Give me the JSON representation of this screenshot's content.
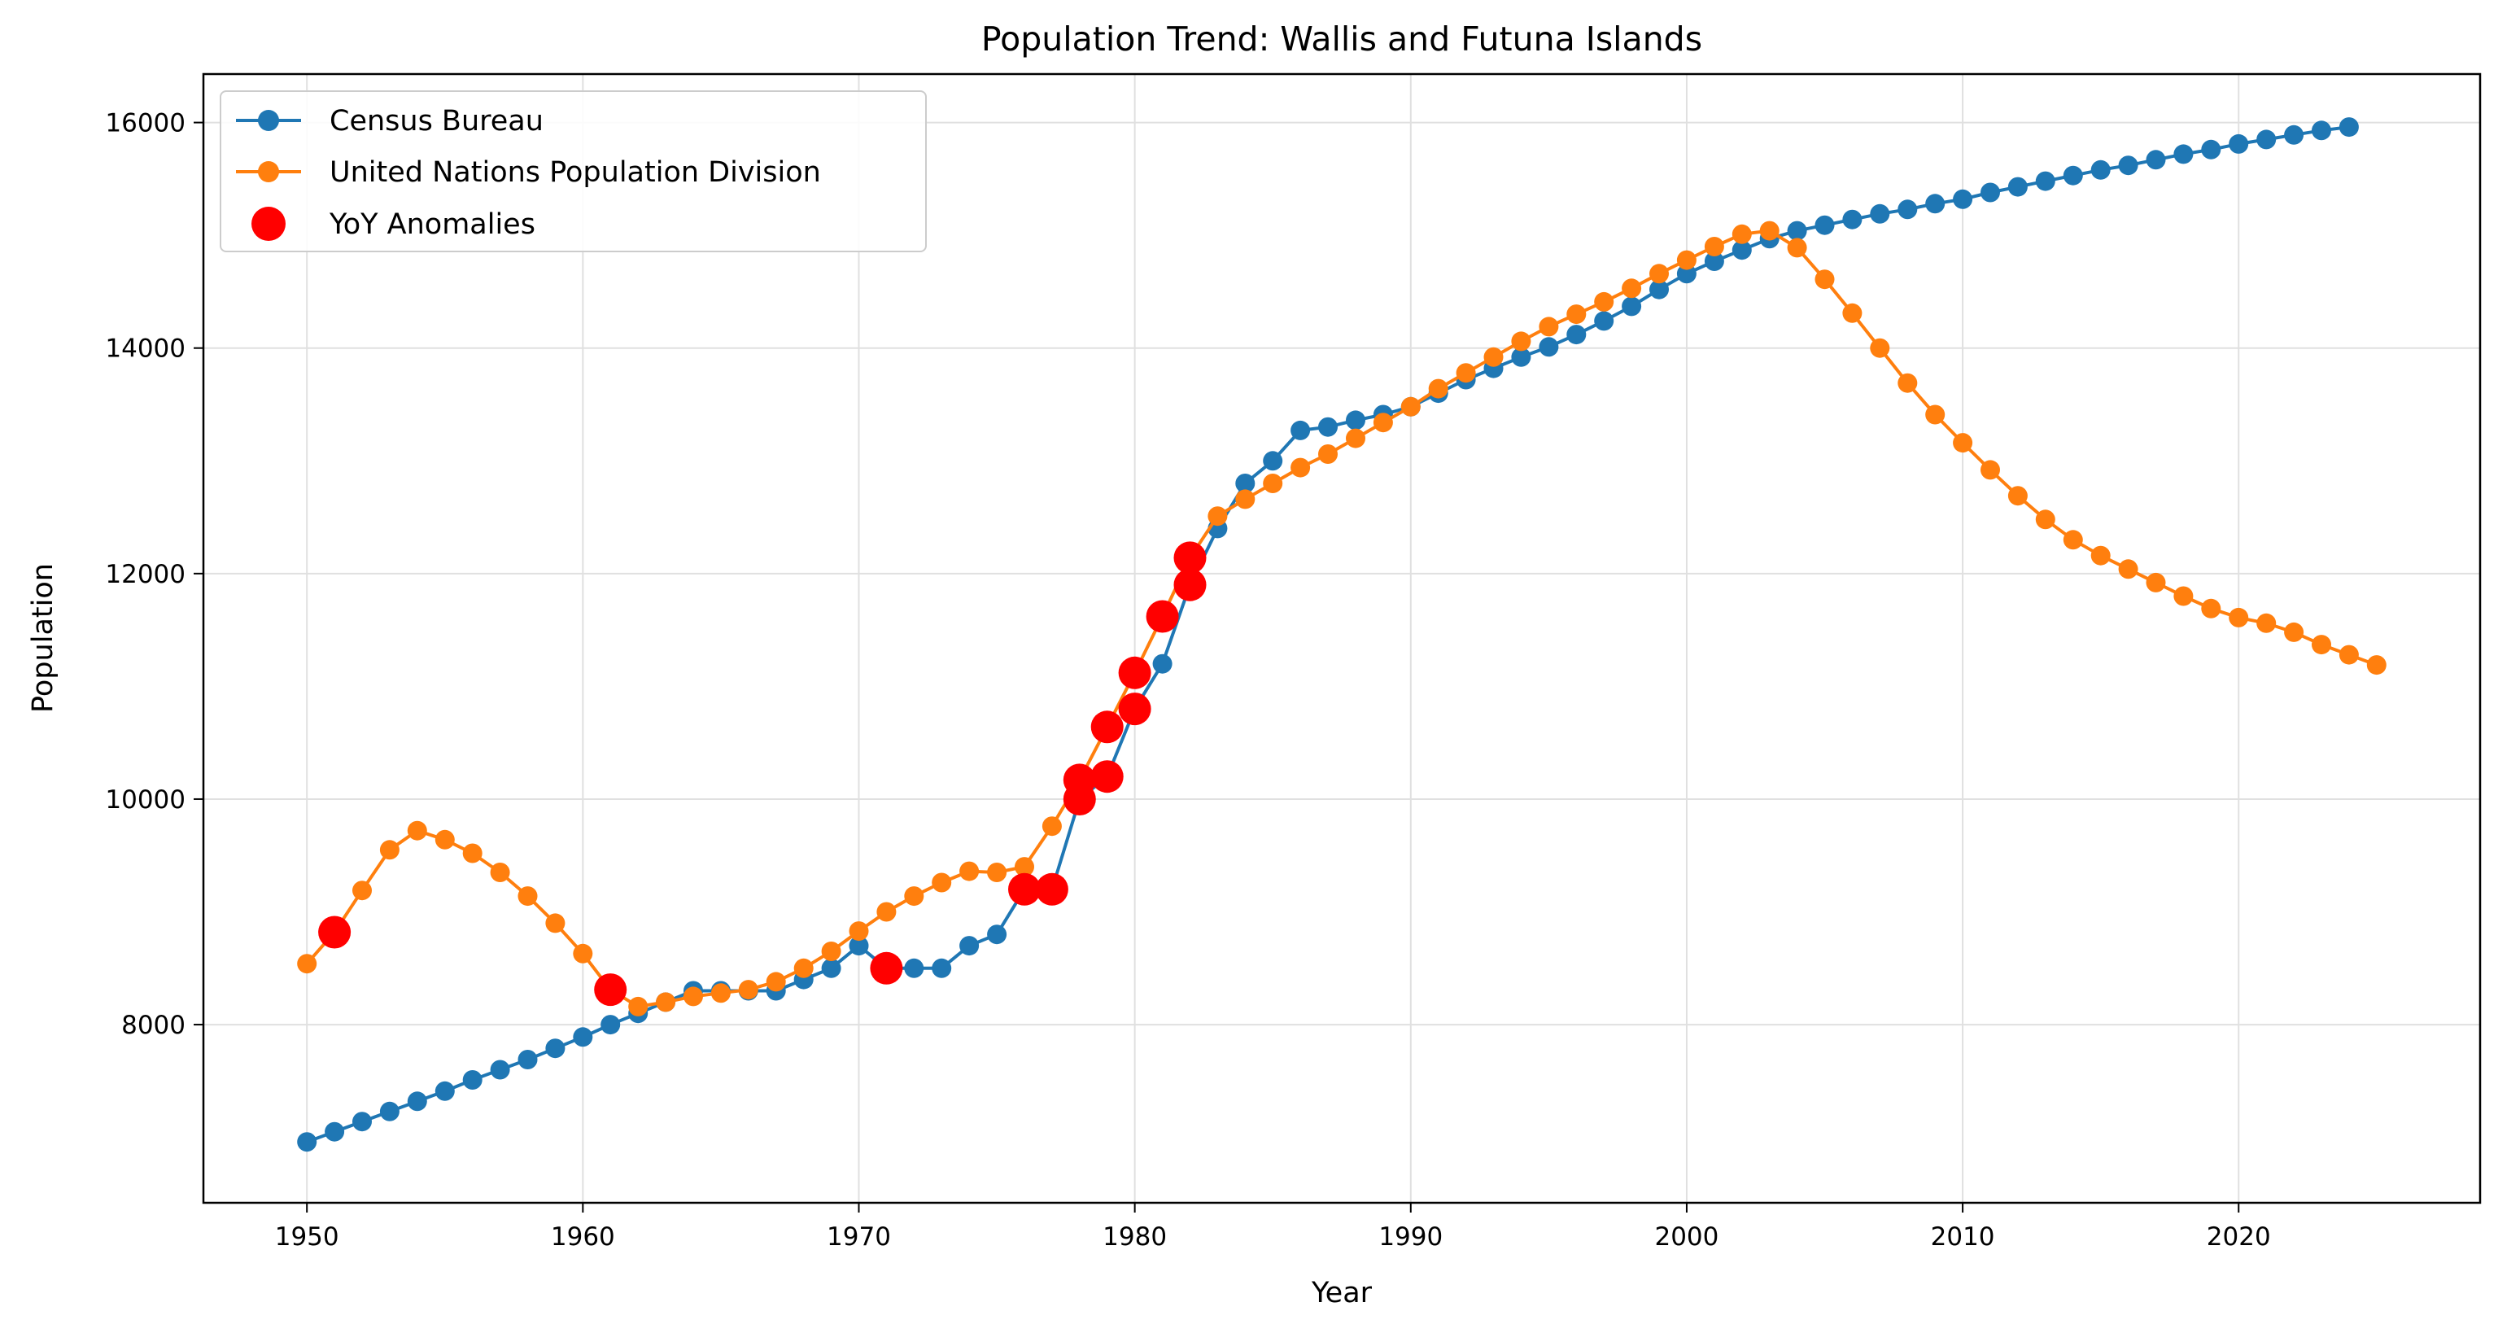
{
  "chart_data": {
    "type": "line",
    "title": "Population Trend: Wallis and Futuna Islands",
    "xlabel": "Year",
    "ylabel": "Population",
    "xlim": [
      1946.25,
      2028.75
    ],
    "ylim": [
      6420,
      16430
    ],
    "xticks": [
      1950,
      1960,
      1970,
      1980,
      1990,
      2000,
      2010,
      2020
    ],
    "yticks": [
      8000,
      10000,
      12000,
      14000,
      16000
    ],
    "grid": true,
    "legend_position": "top-left",
    "series": [
      {
        "name": "Census Bureau",
        "color": "#1f77b4",
        "marker": "circle",
        "line": true,
        "x": [
          1950,
          1951,
          1952,
          1953,
          1954,
          1955,
          1956,
          1957,
          1958,
          1959,
          1960,
          1961,
          1962,
          1963,
          1964,
          1965,
          1966,
          1967,
          1968,
          1969,
          1970,
          1971,
          1972,
          1973,
          1974,
          1975,
          1976,
          1977,
          1978,
          1979,
          1980,
          1981,
          1982,
          1983,
          1984,
          1985,
          1986,
          1987,
          1988,
          1989,
          1990,
          1991,
          1992,
          1993,
          1994,
          1995,
          1996,
          1997,
          1998,
          1999,
          2000,
          2001,
          2002,
          2003,
          2004,
          2005,
          2006,
          2007,
          2008,
          2009,
          2010,
          2011,
          2012,
          2013,
          2014,
          2015,
          2016,
          2017,
          2018,
          2019,
          2020,
          2021,
          2022,
          2023,
          2024
        ],
        "y": [
          6960,
          7050,
          7140,
          7230,
          7320,
          7410,
          7510,
          7600,
          7690,
          7790,
          7890,
          8000,
          8100,
          8200,
          8300,
          8300,
          8300,
          8300,
          8400,
          8500,
          8700,
          8500,
          8500,
          8500,
          8700,
          8800,
          9200,
          9200,
          10000,
          10200,
          10800,
          11200,
          11900,
          12400,
          12800,
          13000,
          13270,
          13300,
          13360,
          13410,
          13480,
          13600,
          13720,
          13820,
          13920,
          14010,
          14120,
          14240,
          14370,
          14520,
          14660,
          14770,
          14870,
          14970,
          15040,
          15090,
          15140,
          15190,
          15230,
          15280,
          15320,
          15380,
          15430,
          15480,
          15530,
          15580,
          15620,
          15670,
          15720,
          15760,
          15810,
          15850,
          15890,
          15930,
          15960
        ]
      },
      {
        "name": "United Nations Population Division",
        "color": "#ff7f0e",
        "marker": "circle",
        "line": true,
        "x": [
          1950,
          1951,
          1952,
          1953,
          1954,
          1955,
          1956,
          1957,
          1958,
          1959,
          1960,
          1961,
          1962,
          1963,
          1964,
          1965,
          1966,
          1967,
          1968,
          1969,
          1970,
          1971,
          1972,
          1973,
          1974,
          1975,
          1976,
          1977,
          1978,
          1979,
          1980,
          1981,
          1982,
          1983,
          1984,
          1985,
          1986,
          1987,
          1988,
          1989,
          1990,
          1991,
          1992,
          1993,
          1994,
          1995,
          1996,
          1997,
          1998,
          1999,
          2000,
          2001,
          2002,
          2003,
          2004,
          2005,
          2006,
          2007,
          2008,
          2009,
          2010,
          2011,
          2012,
          2013,
          2014,
          2015,
          2016,
          2017,
          2018,
          2019,
          2020,
          2021,
          2022,
          2023,
          2024,
          2025
        ],
        "y": [
          8540,
          8820,
          9190,
          9550,
          9720,
          9640,
          9520,
          9350,
          9140,
          8900,
          8630,
          8310,
          8160,
          8200,
          8250,
          8280,
          8310,
          8380,
          8500,
          8650,
          8830,
          9000,
          9140,
          9260,
          9360,
          9350,
          9400,
          9760,
          10170,
          10640,
          11120,
          11620,
          12140,
          12510,
          12660,
          12800,
          12940,
          13060,
          13200,
          13340,
          13480,
          13640,
          13780,
          13920,
          14060,
          14190,
          14300,
          14410,
          14530,
          14660,
          14780,
          14900,
          15010,
          15040,
          14890,
          14610,
          14310,
          14000,
          13690,
          13410,
          13160,
          12920,
          12690,
          12480,
          12300,
          12160,
          12040,
          11920,
          11800,
          11690,
          11610,
          11560,
          11480,
          11370,
          11280,
          11190
        ]
      },
      {
        "name": "YoY Anomalies",
        "color": "#ff0000",
        "marker": "circle",
        "line": false,
        "x": [
          1951,
          1961,
          1971,
          1976,
          1977,
          1978,
          1978,
          1979,
          1979,
          1980,
          1980,
          1981,
          1982,
          1982
        ],
        "y": [
          8820,
          8310,
          8500,
          9200,
          9200,
          10000,
          10170,
          10200,
          10640,
          10800,
          11120,
          11620,
          11900,
          12140
        ]
      }
    ]
  }
}
